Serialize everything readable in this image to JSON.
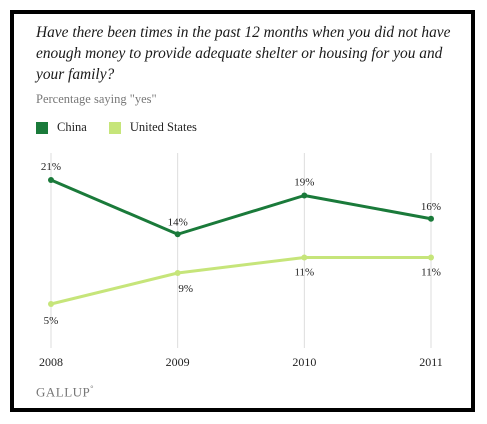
{
  "question": "Have there been times in the past 12 months when you did not have enough money to provide adequate shelter or housing for you and your family?",
  "subtitle": "Percentage saying \"yes\"",
  "brand": "GALLUP",
  "brand_mark": "°",
  "colors": {
    "china": "#1a7a3a",
    "us": "#c6e57a",
    "grid": "#dddddd",
    "text": "#222222"
  },
  "chart_data": {
    "type": "line",
    "x": [
      "2008",
      "2009",
      "2010",
      "2011"
    ],
    "ylim": [
      0,
      25
    ],
    "grid": "vertical",
    "legend_position": "top-left",
    "series": [
      {
        "name": "China",
        "values": [
          21,
          14,
          19,
          16
        ],
        "labels": [
          "21%",
          "14%",
          "19%",
          "16%"
        ],
        "color": "#1a7a3a"
      },
      {
        "name": "United States",
        "values": [
          5,
          9,
          11,
          11
        ],
        "labels": [
          "5%",
          "9%",
          "11%",
          "11%"
        ],
        "color": "#c6e57a"
      }
    ]
  }
}
